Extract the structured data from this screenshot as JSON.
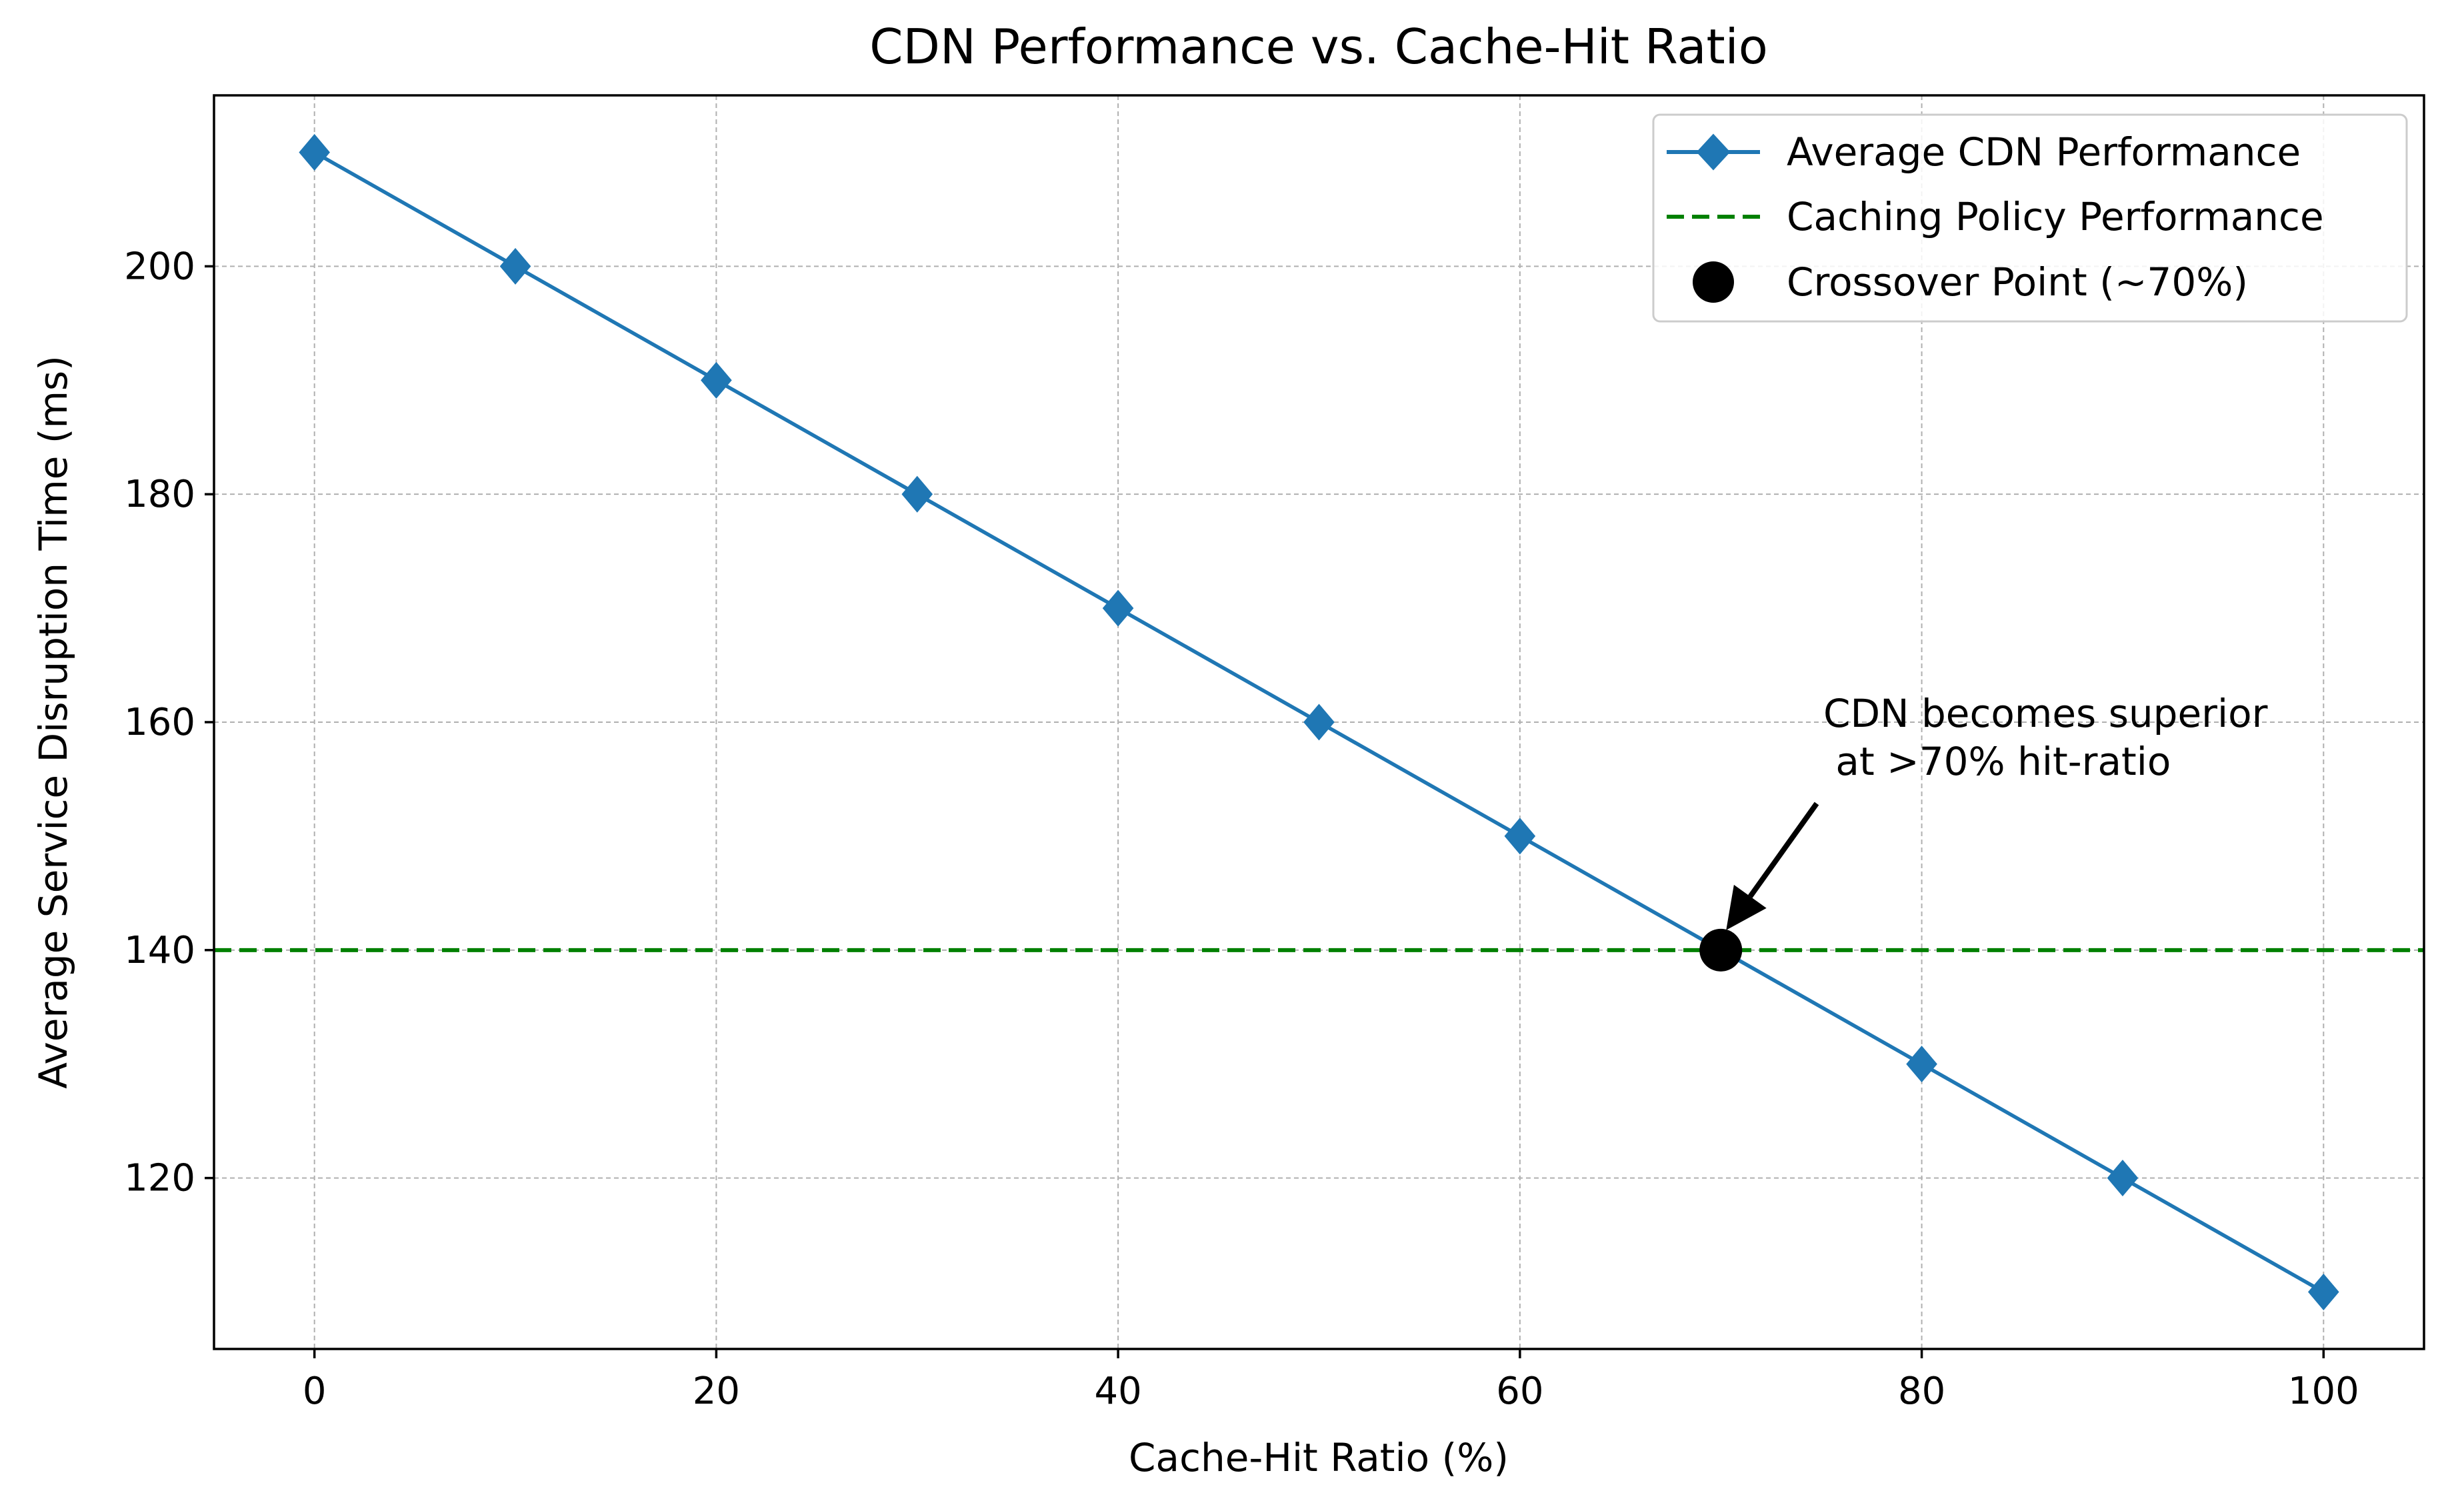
{
  "chart_data": {
    "type": "line",
    "title": "CDN Performance vs. Cache-Hit Ratio",
    "xlabel": "Cache-Hit Ratio (%)",
    "ylabel": "Average Service Disruption Time (ms)",
    "xlim": [
      -5,
      105
    ],
    "ylim": [
      105,
      215
    ],
    "xticks": [
      0,
      20,
      40,
      60,
      80,
      100
    ],
    "yticks": [
      120,
      140,
      160,
      180,
      200
    ],
    "grid": true,
    "legend_position": "top-right",
    "series": [
      {
        "name": "Average CDN Performance",
        "style": "solid line with diamond markers",
        "color": "#1f77b4",
        "x": [
          0,
          10,
          20,
          30,
          40,
          50,
          60,
          70,
          80,
          90,
          100
        ],
        "y": [
          210,
          200,
          190,
          180,
          170,
          160,
          150,
          140,
          130,
          120,
          110
        ]
      },
      {
        "name": "Caching Policy Performance",
        "style": "dashed horizontal line",
        "color": "#008000",
        "y": 140
      },
      {
        "name": "Crossover Point (~70%)",
        "style": "large black dot",
        "color": "#000000",
        "x": 70,
        "y": 140
      }
    ],
    "annotation": {
      "lines": [
        "CDN becomes superior",
        " at >70% hit-ratio"
      ],
      "text_at": [
        75,
        155
      ],
      "points_to": [
        70,
        140
      ]
    }
  }
}
